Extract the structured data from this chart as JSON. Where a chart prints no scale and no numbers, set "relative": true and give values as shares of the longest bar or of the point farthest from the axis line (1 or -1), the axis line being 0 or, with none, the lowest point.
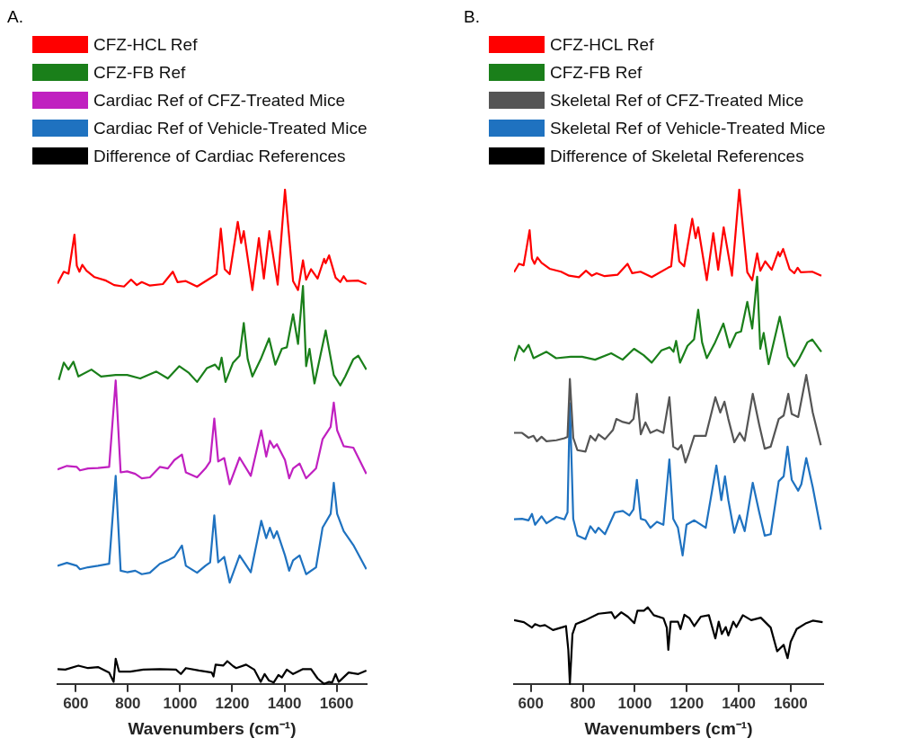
{
  "chart_data": [
    {
      "type": "line",
      "title": "A.",
      "xlabel": "Wavenumbers (cm⁻¹)",
      "relative": true,
      "xlim": [
        530,
        1715
      ],
      "xticks": [
        600,
        800,
        1000,
        1200,
        1400,
        1600
      ],
      "tick_labels": "x",
      "legend": "top",
      "series": [
        {
          "name": "CFZ-HCL Ref",
          "color": "#ff0000",
          "x": [
            530,
            554,
            572,
            595,
            604,
            614,
            625,
            641,
            672,
            716,
            747,
            785,
            812,
            834,
            853,
            884,
            934,
            972,
            990,
            1022,
            1065,
            1128,
            1140,
            1156,
            1171,
            1190,
            1221,
            1234,
            1244,
            1277,
            1302,
            1321,
            1342,
            1374,
            1402,
            1433,
            1452,
            1471,
            1483,
            1502,
            1527,
            1552,
            1558,
            1571,
            1596,
            1614,
            1627,
            1639,
            1683,
            1714
          ],
          "values": [
            0.81,
            0.834,
            0.83,
            0.909,
            0.846,
            0.834,
            0.848,
            0.836,
            0.823,
            0.816,
            0.807,
            0.804,
            0.818,
            0.807,
            0.813,
            0.806,
            0.809,
            0.834,
            0.813,
            0.815,
            0.804,
            0.825,
            0.829,
            0.921,
            0.839,
            0.829,
            0.935,
            0.892,
            0.916,
            0.797,
            0.902,
            0.82,
            0.916,
            0.808,
            1.0,
            0.815,
            0.797,
            0.857,
            0.818,
            0.839,
            0.82,
            0.86,
            0.851,
            0.867,
            0.822,
            0.813,
            0.825,
            0.815,
            0.816,
            0.809
          ]
        },
        {
          "name": "CFZ-FB Ref",
          "color": "#1a7f1a",
          "x": [
            535,
            554,
            572,
            591,
            610,
            660,
            697,
            753,
            797,
            847,
            909,
            953,
            997,
            1034,
            1065,
            1103,
            1134,
            1149,
            1159,
            1174,
            1203,
            1228,
            1244,
            1259,
            1277,
            1309,
            1341,
            1365,
            1390,
            1409,
            1433,
            1452,
            1471,
            1483,
            1496,
            1515,
            1558,
            1589,
            1614,
            1633,
            1664,
            1683,
            1714
          ],
          "values": [
            0.615,
            0.65,
            0.636,
            0.652,
            0.622,
            0.636,
            0.622,
            0.625,
            0.625,
            0.618,
            0.632,
            0.618,
            0.643,
            0.629,
            0.611,
            0.639,
            0.646,
            0.636,
            0.66,
            0.611,
            0.65,
            0.664,
            0.73,
            0.657,
            0.622,
            0.657,
            0.699,
            0.646,
            0.678,
            0.681,
            0.748,
            0.688,
            0.805,
            0.643,
            0.678,
            0.608,
            0.715,
            0.625,
            0.604,
            0.622,
            0.657,
            0.664,
            0.636
          ]
        },
        {
          "name": "Cardiac Ref of CFZ-Treated Mice",
          "color": "#c020c0",
          "x": [
            530,
            566,
            604,
            616,
            647,
            685,
            728,
            753,
            772,
            797,
            828,
            853,
            884,
            922,
            953,
            978,
            1007,
            1022,
            1065,
            1097,
            1115,
            1131,
            1146,
            1169,
            1190,
            1228,
            1271,
            1311,
            1330,
            1344,
            1359,
            1371,
            1402,
            1418,
            1433,
            1458,
            1483,
            1521,
            1546,
            1577,
            1589,
            1602,
            1627,
            1664,
            1714
          ],
          "values": [
            0.434,
            0.441,
            0.439,
            0.432,
            0.436,
            0.437,
            0.439,
            0.614,
            0.428,
            0.43,
            0.425,
            0.416,
            0.418,
            0.439,
            0.436,
            0.453,
            0.464,
            0.428,
            0.418,
            0.436,
            0.45,
            0.537,
            0.45,
            0.457,
            0.404,
            0.458,
            0.421,
            0.513,
            0.46,
            0.492,
            0.478,
            0.485,
            0.453,
            0.416,
            0.436,
            0.446,
            0.416,
            0.436,
            0.495,
            0.52,
            0.569,
            0.513,
            0.481,
            0.478,
            0.425
          ]
        },
        {
          "name": "Cardiac Ref of Vehicle-Treated Mice",
          "color": "#1f72c0",
          "x": [
            530,
            566,
            604,
            616,
            647,
            685,
            728,
            753,
            772,
            797,
            828,
            853,
            884,
            922,
            953,
            978,
            1007,
            1022,
            1065,
            1097,
            1115,
            1131,
            1146,
            1169,
            1190,
            1228,
            1271,
            1311,
            1330,
            1344,
            1359,
            1371,
            1402,
            1418,
            1433,
            1458,
            1483,
            1521,
            1546,
            1577,
            1589,
            1602,
            1627,
            1664,
            1714
          ],
          "values": [
            0.239,
            0.245,
            0.239,
            0.232,
            0.236,
            0.239,
            0.243,
            0.421,
            0.229,
            0.226,
            0.229,
            0.222,
            0.225,
            0.243,
            0.25,
            0.257,
            0.28,
            0.239,
            0.225,
            0.239,
            0.246,
            0.341,
            0.246,
            0.257,
            0.205,
            0.26,
            0.226,
            0.33,
            0.295,
            0.316,
            0.295,
            0.309,
            0.26,
            0.229,
            0.25,
            0.26,
            0.222,
            0.236,
            0.316,
            0.344,
            0.407,
            0.344,
            0.309,
            0.281,
            0.232
          ]
        },
        {
          "name": "Difference of Cardiac References",
          "color": "#000000",
          "x": [
            530,
            560,
            610,
            647,
            685,
            728,
            745,
            753,
            766,
            809,
            859,
            922,
            984,
            1003,
            1022,
            1072,
            1121,
            1128,
            1136,
            1165,
            1181,
            1203,
            1215,
            1253,
            1284,
            1309,
            1324,
            1340,
            1359,
            1377,
            1390,
            1409,
            1433,
            1471,
            1502,
            1527,
            1552,
            1571,
            1583,
            1596,
            1608,
            1646,
            1683,
            1714
          ],
          "values": [
            0.03,
            0.029,
            0.037,
            0.032,
            0.034,
            0.023,
            0.004,
            0.051,
            0.025,
            0.025,
            0.029,
            0.03,
            0.029,
            0.02,
            0.032,
            0.027,
            0.023,
            0.015,
            0.039,
            0.037,
            0.046,
            0.036,
            0.032,
            0.039,
            0.029,
            0.004,
            0.02,
            0.007,
            0.003,
            0.018,
            0.013,
            0.029,
            0.02,
            0.03,
            0.03,
            0.011,
            0.0,
            0.004,
            0.003,
            0.02,
            0.004,
            0.023,
            0.02,
            0.027
          ]
        }
      ]
    },
    {
      "type": "line",
      "title": "B.",
      "xlabel": "Wavenumbers (cm⁻¹)",
      "relative": true,
      "xlim": [
        535,
        1725
      ],
      "xticks": [
        600,
        800,
        1000,
        1200,
        1400,
        1600
      ],
      "tick_labels": "x",
      "legend": "top",
      "series": [
        {
          "name": "CFZ-HCL Ref",
          "color": "#ff0000",
          "x": [
            535,
            554,
            572,
            595,
            604,
            614,
            625,
            641,
            672,
            716,
            747,
            785,
            812,
            834,
            853,
            884,
            934,
            972,
            990,
            1022,
            1065,
            1128,
            1140,
            1156,
            1171,
            1190,
            1221,
            1234,
            1244,
            1277,
            1302,
            1321,
            1342,
            1374,
            1402,
            1433,
            1452,
            1471,
            1483,
            1502,
            1527,
            1552,
            1558,
            1571,
            1596,
            1614,
            1627,
            1639,
            1683,
            1718
          ],
          "values": [
            0.833,
            0.85,
            0.847,
            0.918,
            0.861,
            0.85,
            0.863,
            0.852,
            0.84,
            0.834,
            0.826,
            0.823,
            0.836,
            0.826,
            0.831,
            0.825,
            0.828,
            0.85,
            0.831,
            0.834,
            0.823,
            0.842,
            0.845,
            0.929,
            0.855,
            0.845,
            0.941,
            0.902,
            0.924,
            0.817,
            0.912,
            0.838,
            0.924,
            0.826,
            1.0,
            0.833,
            0.817,
            0.871,
            0.836,
            0.855,
            0.838,
            0.874,
            0.865,
            0.88,
            0.839,
            0.831,
            0.842,
            0.833,
            0.834,
            0.826
          ]
        },
        {
          "name": "CFZ-FB Ref",
          "color": "#1a7f1a",
          "x": [
            535,
            554,
            572,
            591,
            610,
            660,
            697,
            753,
            797,
            847,
            909,
            953,
            997,
            1034,
            1065,
            1103,
            1134,
            1149,
            1159,
            1174,
            1203,
            1228,
            1244,
            1259,
            1277,
            1309,
            1341,
            1365,
            1390,
            1409,
            1433,
            1452,
            1471,
            1483,
            1496,
            1515,
            1558,
            1589,
            1614,
            1633,
            1664,
            1683,
            1718
          ],
          "values": [
            0.653,
            0.684,
            0.672,
            0.686,
            0.659,
            0.672,
            0.659,
            0.662,
            0.662,
            0.656,
            0.669,
            0.656,
            0.678,
            0.665,
            0.65,
            0.675,
            0.681,
            0.672,
            0.694,
            0.65,
            0.684,
            0.697,
            0.757,
            0.691,
            0.659,
            0.691,
            0.729,
            0.681,
            0.71,
            0.713,
            0.773,
            0.719,
            0.824,
            0.678,
            0.71,
            0.647,
            0.743,
            0.662,
            0.643,
            0.659,
            0.691,
            0.697,
            0.672
          ]
        },
        {
          "name": "Skeletal Ref of CFZ-Treated Mice",
          "color": "#555555",
          "x": [
            535,
            566,
            591,
            610,
            623,
            641,
            660,
            698,
            729,
            741,
            750,
            763,
            779,
            810,
            829,
            848,
            860,
            885,
            916,
            929,
            954,
            979,
            995,
            1008,
            1023,
            1041,
            1060,
            1085,
            1110,
            1133,
            1148,
            1166,
            1179,
            1195,
            1208,
            1229,
            1273,
            1310,
            1329,
            1345,
            1360,
            1383,
            1404,
            1423,
            1454,
            1479,
            1500,
            1523,
            1554,
            1573,
            1591,
            1604,
            1629,
            1660,
            1685,
            1716
          ],
          "values": [
            0.508,
            0.508,
            0.498,
            0.502,
            0.491,
            0.5,
            0.491,
            0.493,
            0.497,
            0.5,
            0.617,
            0.498,
            0.473,
            0.47,
            0.502,
            0.492,
            0.505,
            0.495,
            0.514,
            0.536,
            0.53,
            0.527,
            0.536,
            0.587,
            0.505,
            0.529,
            0.508,
            0.514,
            0.508,
            0.58,
            0.48,
            0.474,
            0.483,
            0.448,
            0.467,
            0.502,
            0.502,
            0.58,
            0.549,
            0.571,
            0.536,
            0.489,
            0.508,
            0.492,
            0.587,
            0.524,
            0.476,
            0.48,
            0.536,
            0.543,
            0.587,
            0.546,
            0.54,
            0.625,
            0.549,
            0.483
          ]
        },
        {
          "name": "Skeletal Ref of Vehicle-Treated Mice",
          "color": "#1f72c0",
          "x": [
            535,
            566,
            591,
            604,
            616,
            641,
            660,
            698,
            729,
            741,
            750,
            763,
            779,
            810,
            829,
            848,
            860,
            885,
            923,
            954,
            979,
            995,
            1008,
            1023,
            1041,
            1060,
            1085,
            1110,
            1133,
            1148,
            1166,
            1184,
            1199,
            1229,
            1273,
            1314,
            1333,
            1347,
            1360,
            1383,
            1403,
            1423,
            1454,
            1479,
            1500,
            1523,
            1554,
            1573,
            1588,
            1604,
            1629,
            1641,
            1660,
            1685,
            1716
          ],
          "values": [
            0.333,
            0.334,
            0.331,
            0.344,
            0.322,
            0.339,
            0.325,
            0.338,
            0.333,
            0.347,
            0.568,
            0.334,
            0.3,
            0.293,
            0.319,
            0.306,
            0.316,
            0.303,
            0.347,
            0.35,
            0.341,
            0.353,
            0.413,
            0.334,
            0.331,
            0.316,
            0.328,
            0.322,
            0.454,
            0.334,
            0.316,
            0.26,
            0.322,
            0.331,
            0.316,
            0.442,
            0.372,
            0.42,
            0.372,
            0.306,
            0.341,
            0.309,
            0.407,
            0.347,
            0.3,
            0.303,
            0.41,
            0.42,
            0.48,
            0.413,
            0.391,
            0.404,
            0.457,
            0.398,
            0.312
          ]
        },
        {
          "name": "Difference of Skeletal References",
          "color": "#000000",
          "x": [
            535,
            573,
            604,
            616,
            635,
            654,
            685,
            723,
            735,
            744,
            750,
            760,
            773,
            810,
            860,
            910,
            923,
            948,
            973,
            998,
            1010,
            1035,
            1050,
            1073,
            1110,
            1123,
            1129,
            1138,
            1166,
            1176,
            1191,
            1210,
            1229,
            1254,
            1285,
            1310,
            1323,
            1335,
            1350,
            1360,
            1379,
            1391,
            1416,
            1448,
            1485,
            1523,
            1548,
            1573,
            1588,
            1600,
            1623,
            1660,
            1685,
            1723
          ],
          "values": [
            0.129,
            0.125,
            0.114,
            0.121,
            0.117,
            0.119,
            0.109,
            0.115,
            0.117,
            0.069,
            0.0,
            0.101,
            0.121,
            0.129,
            0.142,
            0.145,
            0.133,
            0.145,
            0.136,
            0.123,
            0.148,
            0.148,
            0.155,
            0.139,
            0.133,
            0.114,
            0.069,
            0.126,
            0.126,
            0.111,
            0.14,
            0.133,
            0.117,
            0.136,
            0.139,
            0.092,
            0.126,
            0.101,
            0.115,
            0.098,
            0.126,
            0.115,
            0.139,
            0.129,
            0.134,
            0.114,
            0.066,
            0.079,
            0.052,
            0.085,
            0.111,
            0.123,
            0.128,
            0.125
          ]
        }
      ]
    }
  ]
}
